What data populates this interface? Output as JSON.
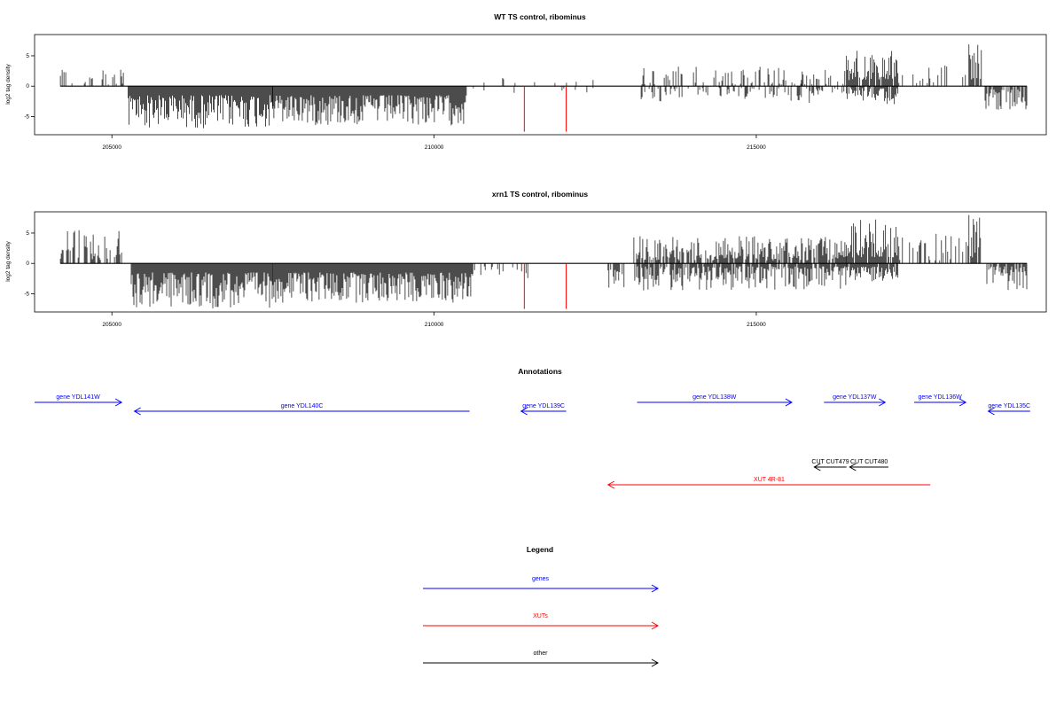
{
  "chart_data": [
    {
      "type": "bar",
      "title": "WT TS control, ribominus",
      "ylabel": "log2 tag density",
      "xlim": [
        203800,
        219500
      ],
      "ylim": [
        -8,
        8.5
      ],
      "xticks": [
        205000,
        210000,
        215000
      ],
      "yticks": [
        5,
        0,
        -5
      ],
      "x_range": [
        204200,
        219200
      ],
      "segments": [
        {
          "x0": 204200,
          "x1": 205200,
          "pos": [
            0.3,
            3.2
          ],
          "neg": [
            0,
            0
          ],
          "density": 0.35
        },
        {
          "x0": 205250,
          "x1": 207500,
          "pos": [
            0,
            0
          ],
          "neg": [
            -1.5,
            -7
          ],
          "density": 1.0
        },
        {
          "x0": 207500,
          "x1": 210500,
          "pos": [
            0,
            0
          ],
          "neg": [
            -1.5,
            -6.5
          ],
          "density": 1.0
        },
        {
          "x0": 210500,
          "x1": 212500,
          "pos": [
            0,
            1.5
          ],
          "neg": [
            -0.3,
            -1.2
          ],
          "density": 0.05
        },
        {
          "x0": 213200,
          "x1": 215700,
          "pos": [
            0.3,
            3.2
          ],
          "neg": [
            -0.3,
            -2.5
          ],
          "density": 0.3
        },
        {
          "x0": 215700,
          "x1": 216400,
          "pos": [
            0.3,
            3
          ],
          "neg": [
            -0.3,
            -2.8
          ],
          "density": 0.45
        },
        {
          "x0": 216400,
          "x1": 217200,
          "pos": [
            1,
            6
          ],
          "neg": [
            -0.3,
            -3
          ],
          "density": 0.85
        },
        {
          "x0": 217200,
          "x1": 218300,
          "pos": [
            0.5,
            5
          ],
          "neg": [
            0,
            0
          ],
          "density": 0.25
        },
        {
          "x0": 218300,
          "x1": 218500,
          "pos": [
            1,
            7
          ],
          "neg": [
            0,
            0
          ],
          "density": 0.8
        },
        {
          "x0": 218550,
          "x1": 219200,
          "pos": [
            0,
            0
          ],
          "neg": [
            -0.5,
            -4
          ],
          "density": 0.8
        }
      ],
      "red_marks": [
        {
          "x": 211400,
          "y": -7.5
        },
        {
          "x": 212050,
          "y": -7.5
        }
      ]
    },
    {
      "type": "bar",
      "title": "xrn1 TS control, ribominus",
      "ylabel": "log2 tag density",
      "xlim": [
        203800,
        219500
      ],
      "ylim": [
        -8,
        8.5
      ],
      "xticks": [
        205000,
        210000,
        215000
      ],
      "yticks": [
        5,
        0,
        -5
      ],
      "x_range": [
        204200,
        219200
      ],
      "segments": [
        {
          "x0": 204200,
          "x1": 205200,
          "pos": [
            0.5,
            5.5
          ],
          "neg": [
            0,
            0
          ],
          "density": 0.6
        },
        {
          "x0": 205300,
          "x1": 207500,
          "pos": [
            0,
            0
          ],
          "neg": [
            -1.5,
            -7.5
          ],
          "density": 1.0
        },
        {
          "x0": 207500,
          "x1": 210600,
          "pos": [
            0,
            0
          ],
          "neg": [
            -1.5,
            -6.5
          ],
          "density": 1.0
        },
        {
          "x0": 210600,
          "x1": 211500,
          "pos": [
            0,
            0
          ],
          "neg": [
            -0.5,
            -2.5
          ],
          "density": 0.2
        },
        {
          "x0": 212700,
          "x1": 213000,
          "pos": [
            0,
            0
          ],
          "neg": [
            -1,
            -4
          ],
          "density": 0.5
        },
        {
          "x0": 213100,
          "x1": 216400,
          "pos": [
            0.5,
            4.5
          ],
          "neg": [
            -0.5,
            -4.5
          ],
          "density": 0.8
        },
        {
          "x0": 216400,
          "x1": 217200,
          "pos": [
            1,
            7.5
          ],
          "neg": [
            -0.5,
            -3
          ],
          "density": 0.9
        },
        {
          "x0": 217200,
          "x1": 218300,
          "pos": [
            0.5,
            5.5
          ],
          "neg": [
            0,
            0
          ],
          "density": 0.25
        },
        {
          "x0": 218300,
          "x1": 218500,
          "pos": [
            1,
            8
          ],
          "neg": [
            0,
            0
          ],
          "density": 0.8
        },
        {
          "x0": 218550,
          "x1": 219200,
          "pos": [
            0,
            0
          ],
          "neg": [
            -0.5,
            -4.5
          ],
          "density": 0.8
        }
      ],
      "red_marks": [
        {
          "x": 211400,
          "y": -7.5
        },
        {
          "x": 212050,
          "y": -7.5
        }
      ]
    }
  ],
  "annotations": {
    "title": "Annotations",
    "xlim": [
      203800,
      219500
    ],
    "features": [
      {
        "label": "gene YDL141W",
        "start": 203800,
        "end": 205150,
        "strand": "+",
        "color": "#0000ff",
        "row": 1
      },
      {
        "label": "gene YDL140C",
        "start": 205350,
        "end": 210550,
        "strand": "-",
        "color": "#0000ff",
        "row": 2
      },
      {
        "label": "gene YDL139C",
        "start": 211350,
        "end": 212050,
        "strand": "-",
        "color": "#0000ff",
        "row": 2
      },
      {
        "label": "gene YDL138W",
        "start": 213150,
        "end": 215550,
        "strand": "+",
        "color": "#0000ff",
        "row": 1
      },
      {
        "label": "gene YDL137W",
        "start": 216050,
        "end": 217000,
        "strand": "+",
        "color": "#0000ff",
        "row": 1
      },
      {
        "label": "gene YDL136W",
        "start": 217450,
        "end": 218250,
        "strand": "+",
        "color": "#0000ff",
        "row": 1
      },
      {
        "label": "gene YDL135C",
        "start": 218600,
        "end": 219250,
        "strand": "-",
        "color": "#0000ff",
        "row": 2
      },
      {
        "label": "CUT CUT479",
        "start": 215900,
        "end": 216400,
        "strand": "-",
        "color": "#000000",
        "row": 3
      },
      {
        "label": "CUT CUT480",
        "start": 216450,
        "end": 217050,
        "strand": "-",
        "color": "#000000",
        "row": 3
      },
      {
        "label": "XUT 4R-81",
        "start": 212700,
        "end": 217700,
        "strand": "-",
        "color": "#ff0000",
        "row": 4
      }
    ]
  },
  "legend": {
    "title": "Legend",
    "items": [
      {
        "label": "genes",
        "color": "#0000ff"
      },
      {
        "label": "XUTs",
        "color": "#ff0000"
      },
      {
        "label": "other",
        "color": "#000000"
      }
    ]
  },
  "colors": {
    "signal": "#000000",
    "red_mark": "#ff0000",
    "axis": "#000000"
  }
}
